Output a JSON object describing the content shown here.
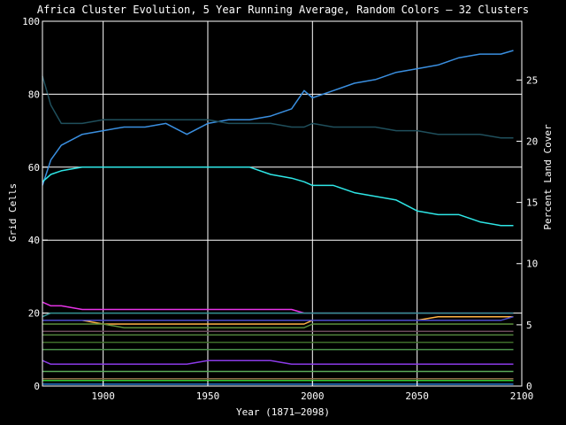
{
  "chart_data": {
    "type": "line",
    "title": "Africa Cluster Evolution, 5 Year Running Average, Random Colors — 32 Clusters",
    "xlabel": "Year (1871–2098)",
    "ylabel": "Grid Cells",
    "ylabel_right": "Percent Land Cover",
    "xlim": [
      1871,
      2100
    ],
    "ylim": [
      0,
      100
    ],
    "ylim_right": [
      0,
      29.8
    ],
    "x_ticks": [
      1900,
      1950,
      2000,
      2050,
      2100
    ],
    "y_ticks": [
      0,
      20,
      40,
      60,
      80,
      100
    ],
    "y_ticks_right": [
      0,
      5,
      10,
      15,
      20,
      25
    ],
    "grid": true,
    "x_points": [
      1871,
      1875,
      1880,
      1890,
      1900,
      1910,
      1920,
      1930,
      1940,
      1950,
      1960,
      1970,
      1980,
      1990,
      1996,
      2000,
      2010,
      2020,
      2030,
      2040,
      2050,
      2060,
      2070,
      2080,
      2090,
      2096
    ],
    "series": [
      {
        "color": "#3a8fe0",
        "values": [
          55,
          62,
          66,
          69,
          70,
          71,
          71,
          72,
          69,
          72,
          73,
          73,
          74,
          76,
          81,
          79,
          81,
          83,
          84,
          86,
          87,
          88,
          90,
          91,
          91,
          92
        ]
      },
      {
        "color": "#1f4f5c",
        "values": [
          85,
          77,
          72,
          72,
          73,
          73,
          73,
          73,
          73,
          73,
          72,
          72,
          72,
          71,
          71,
          72,
          71,
          71,
          71,
          70,
          70,
          69,
          69,
          69,
          68,
          68
        ]
      },
      {
        "color": "#2ee6e6",
        "values": [
          56,
          58,
          59,
          60,
          60,
          60,
          60,
          60,
          60,
          60,
          60,
          60,
          58,
          57,
          56,
          55,
          55,
          53,
          52,
          51,
          48,
          47,
          47,
          45,
          44,
          44
        ]
      },
      {
        "color": "#e633e6",
        "values": [
          23,
          22,
          22,
          21,
          21,
          21,
          21,
          21,
          21,
          21,
          21,
          21,
          21,
          21,
          20,
          20,
          20,
          20,
          20,
          20,
          20,
          20,
          20,
          20,
          20,
          20
        ]
      },
      {
        "color": "#2f8f8f",
        "values": [
          19,
          20,
          20,
          20,
          20,
          20,
          20,
          20,
          20,
          20,
          20,
          20,
          20,
          20,
          20,
          20,
          20,
          20,
          20,
          20,
          20,
          20,
          20,
          20,
          20,
          20
        ]
      },
      {
        "color": "#ffb347",
        "values": [
          18,
          18,
          18,
          18,
          17,
          17,
          17,
          17,
          17,
          17,
          17,
          17,
          17,
          17,
          17,
          18,
          18,
          18,
          18,
          18,
          18,
          19,
          19,
          19,
          19,
          19
        ]
      },
      {
        "color": "#4a4acc",
        "values": [
          18,
          18,
          18,
          18,
          18,
          18,
          18,
          18,
          18,
          18,
          18,
          18,
          18,
          18,
          18,
          18,
          18,
          18,
          18,
          18,
          18,
          18,
          18,
          18,
          18,
          19
        ]
      },
      {
        "color": "#5a8f3a",
        "values": [
          17,
          17,
          17,
          17,
          17,
          16,
          16,
          16,
          16,
          16,
          16,
          16,
          16,
          16,
          16,
          17,
          17,
          17,
          17,
          17,
          17,
          17,
          17,
          17,
          17,
          17
        ]
      },
      {
        "color": "#6a4a5a",
        "values": [
          15,
          15,
          15,
          15,
          15,
          15,
          15,
          15,
          15,
          15,
          15,
          15,
          15,
          15,
          15,
          15,
          15,
          15,
          15,
          15,
          15,
          15,
          15,
          15,
          15,
          15
        ]
      },
      {
        "color": "#4f7f3a",
        "values": [
          14,
          14,
          14,
          14,
          14,
          14,
          14,
          14,
          14,
          14,
          14,
          14,
          14,
          14,
          14,
          14,
          14,
          14,
          14,
          14,
          14,
          14,
          14,
          14,
          14,
          14
        ]
      },
      {
        "color": "#3f6f2a",
        "values": [
          12,
          12,
          12,
          12,
          12,
          12,
          12,
          12,
          12,
          12,
          12,
          12,
          12,
          12,
          12,
          12,
          12,
          12,
          12,
          12,
          12,
          12,
          12,
          12,
          12,
          12
        ]
      },
      {
        "color": "#4a8f4a",
        "values": [
          10,
          10,
          10,
          10,
          10,
          10,
          10,
          10,
          10,
          10,
          10,
          10,
          10,
          10,
          10,
          10,
          10,
          10,
          10,
          10,
          10,
          10,
          10,
          10,
          10,
          10
        ]
      },
      {
        "color": "#8a3ae6",
        "values": [
          7,
          6,
          6,
          6,
          6,
          6,
          6,
          6,
          6,
          7,
          7,
          7,
          7,
          6,
          6,
          6,
          6,
          6,
          6,
          6,
          6,
          6,
          6,
          6,
          6,
          6
        ]
      },
      {
        "color": "#5aaa5a",
        "values": [
          4,
          4,
          4,
          4,
          4,
          4,
          4,
          4,
          4,
          4,
          4,
          4,
          4,
          4,
          4,
          4,
          4,
          4,
          4,
          4,
          4,
          4,
          4,
          4,
          4,
          4
        ]
      },
      {
        "color": "#8f6f4a",
        "values": [
          2,
          2,
          2,
          2,
          2,
          2,
          2,
          2,
          2,
          2,
          2,
          2,
          2,
          2,
          2,
          2,
          2,
          2,
          2,
          2,
          2,
          2,
          2,
          2,
          2,
          2
        ]
      },
      {
        "color": "#33cc33",
        "values": [
          1.5,
          1.5,
          1.5,
          1.5,
          1.5,
          1.5,
          1.5,
          1.5,
          1.5,
          1.5,
          1.5,
          1.5,
          1.5,
          1.5,
          1.5,
          1.5,
          1.5,
          1.5,
          1.5,
          1.5,
          1.5,
          1.5,
          1.5,
          1.5,
          1.5,
          1.5
        ]
      },
      {
        "color": "#2277cc",
        "values": [
          0.5,
          0.5,
          0.5,
          0.5,
          0.5,
          0.5,
          0.5,
          0.5,
          0.5,
          0.5,
          0.5,
          0.5,
          0.5,
          0.5,
          0.5,
          0.5,
          0.5,
          0.5,
          0.5,
          0.5,
          0.5,
          0.5,
          0.5,
          0.5,
          0.5,
          0.5
        ]
      }
    ]
  }
}
